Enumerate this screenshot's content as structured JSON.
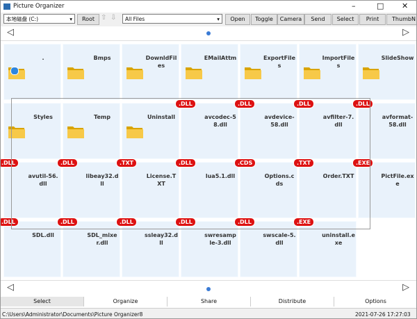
{
  "title_bar": {
    "title": "Picture Organizer"
  },
  "toolbar": {
    "drive": "本地磁盘 (C:)",
    "root": "Root",
    "filter": "All Files",
    "buttons": [
      "Open",
      "Toggle",
      "Camera",
      "Send",
      "Select",
      "Print",
      "ThumbN"
    ]
  },
  "grid": {
    "items": [
      {
        "name": "."
      },
      {
        "name": "Bmps"
      },
      {
        "name": "DownldFiles"
      },
      {
        "name": "EMailAttm"
      },
      {
        "name": "ExportFiles"
      },
      {
        "name": "ImportFiles"
      },
      {
        "name": "SlideShow"
      },
      {
        "name": "Styles"
      },
      {
        "name": "Temp"
      },
      {
        "name": "Uninstall"
      },
      {
        "name": "avcodec-58.dll",
        "badge": ".DLL"
      },
      {
        "name": "avdevice-58.dll",
        "badge": ".DLL"
      },
      {
        "name": "avfilter-7.dll",
        "badge": ".DLL"
      },
      {
        "name": "avformat-58.dll",
        "badge": ".DLL"
      },
      {
        "name": "avutil-56.dll",
        "badge": ".DLL"
      },
      {
        "name": "libeay32.dll",
        "badge": ".DLL"
      },
      {
        "name": "License.TXT",
        "badge": ".TXT"
      },
      {
        "name": "lua5.1.dll",
        "badge": ".DLL"
      },
      {
        "name": "Options.cds",
        "badge": ".CDS"
      },
      {
        "name": "Order.TXT",
        "badge": ".TXT"
      },
      {
        "name": "PictFile.exe",
        "badge": ".EXE"
      },
      {
        "name": "SDL.dll",
        "badge": ".DLL"
      },
      {
        "name": "SDL_mixer.dll",
        "badge": ".DLL"
      },
      {
        "name": "ssleay32.dll",
        "badge": ".DLL"
      },
      {
        "name": "swresample-3.dll",
        "badge": ".DLL"
      },
      {
        "name": "swscale-5.dll",
        "badge": ".DLL"
      },
      {
        "name": "uninstall.exe",
        "badge": ".EXE"
      }
    ]
  },
  "tabs": [
    "Select",
    "Organize",
    "Share",
    "Distribute",
    "Options"
  ],
  "status": {
    "path": "C:\\Users\\Administrator\\Documents\\Picture Organizer8",
    "datetime": "2021-07-26 17:27:03"
  }
}
